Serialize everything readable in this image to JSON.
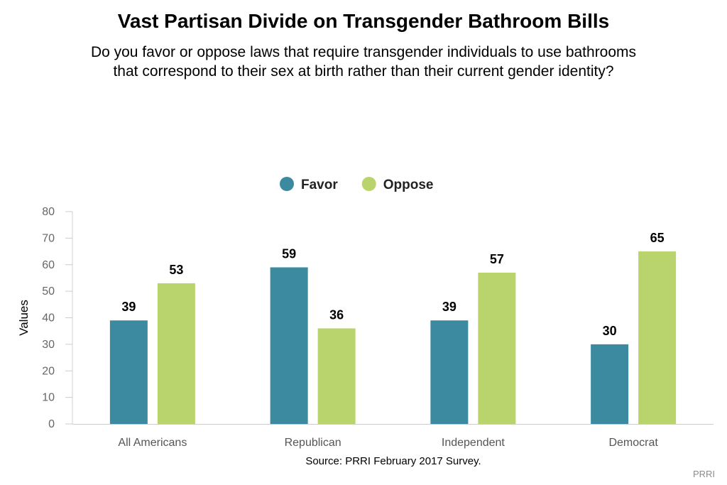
{
  "chart_data": {
    "type": "bar",
    "title": "Vast Partisan Divide on Transgender Bathroom Bills",
    "subtitle_lines": [
      "Do you favor or oppose laws that require transgender individuals to use bathrooms",
      "that correspond to their sex at birth rather than their current gender identity?"
    ],
    "categories": [
      "All Americans",
      "Republican",
      "Independent",
      "Democrat"
    ],
    "series": [
      {
        "name": "Favor",
        "color": "#3c8aa0",
        "values": [
          39,
          59,
          39,
          30
        ]
      },
      {
        "name": "Oppose",
        "color": "#b9d36d",
        "values": [
          53,
          36,
          57,
          65
        ]
      }
    ],
    "xlabel": "",
    "ylabel": "Values",
    "ylim": [
      0,
      80
    ],
    "yticks": [
      "0",
      "10",
      "20",
      "30",
      "40",
      "50",
      "60",
      "70",
      "80"
    ],
    "grid": false,
    "legend_position": "top-center",
    "data_labels": true
  },
  "footer": {
    "source": "Source: PRRI February 2017 Survey.",
    "credit": "PRRI"
  }
}
